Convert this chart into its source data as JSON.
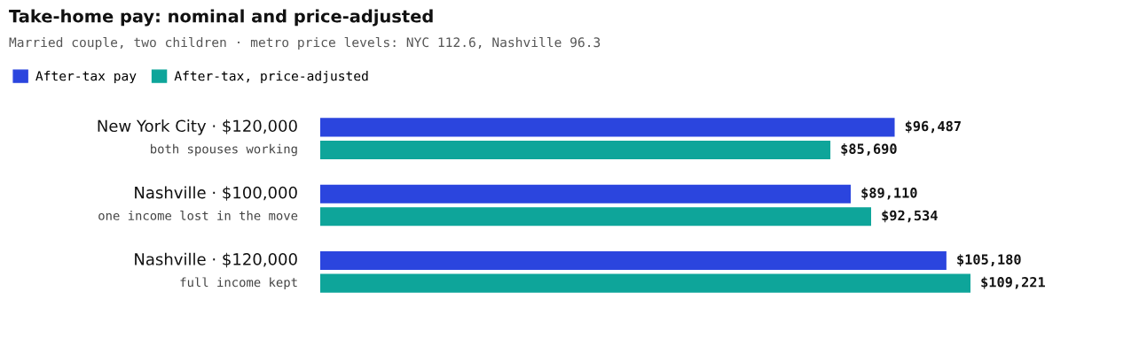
{
  "chart_data": {
    "type": "bar",
    "orientation": "horizontal",
    "title": "Take-home pay: nominal and price-adjusted",
    "subtitle": "Married couple, two children · metro price levels: NYC 112.6, Nashville 96.3",
    "categories": [
      "New York City · $120,000\nboth spouses working",
      "Nashville · $100,000\none income lost in the move",
      "Nashville · $120,000\nfull income kept"
    ],
    "series": [
      {
        "name": "After-tax pay",
        "color": "#2b45de",
        "values": [
          96487,
          89110,
          105180
        ],
        "value_labels": [
          "$96,487",
          "$89,110",
          "$105,180"
        ]
      },
      {
        "name": "After-tax, price-adjusted",
        "color": "#0ea59a",
        "values": [
          85690,
          92534,
          109221
        ],
        "value_labels": [
          "$85,690",
          "$92,534",
          "$109,221"
        ]
      }
    ],
    "legend": "top left"
  }
}
